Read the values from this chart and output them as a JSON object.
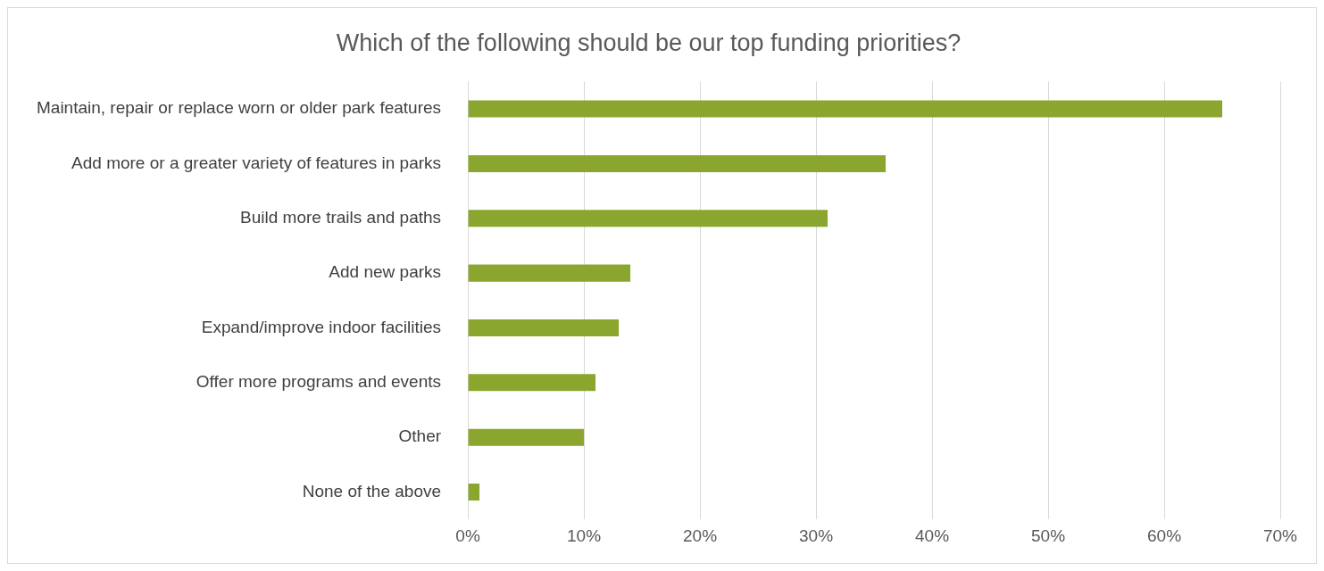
{
  "chart_data": {
    "type": "bar",
    "orientation": "horizontal",
    "title": "Which of the following should be our top funding priorities?",
    "categories": [
      "Maintain, repair or replace worn or older park features",
      "Add more or a greater variety of features in parks",
      "Build more trails and paths",
      "Add new parks",
      "Expand/improve indoor facilities",
      "Offer more programs and events",
      "Other",
      "None of the above"
    ],
    "values": [
      65,
      36,
      31,
      14,
      13,
      11,
      10,
      1
    ],
    "color": "#8ba62e",
    "xlim": [
      0,
      70
    ],
    "xticks": [
      {
        "value": 0,
        "label": "0%"
      },
      {
        "value": 10,
        "label": "10%"
      },
      {
        "value": 20,
        "label": "20%"
      },
      {
        "value": 30,
        "label": "30%"
      },
      {
        "value": 40,
        "label": "40%"
      },
      {
        "value": 50,
        "label": "50%"
      },
      {
        "value": 60,
        "label": "60%"
      },
      {
        "value": 70,
        "label": "70%"
      }
    ],
    "grid": "x",
    "legend": false
  }
}
